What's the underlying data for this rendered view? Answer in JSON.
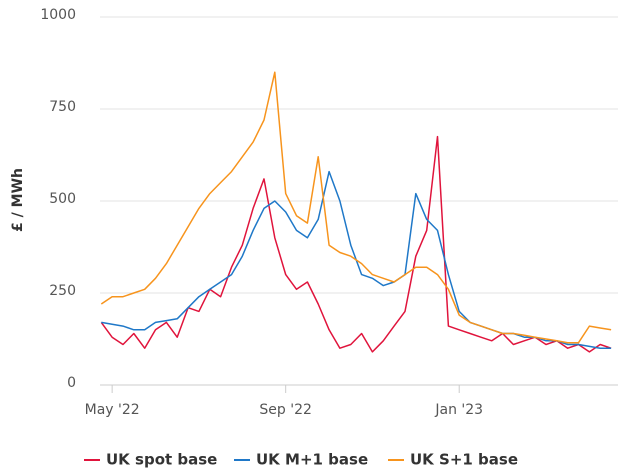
{
  "chart_data": {
    "type": "line",
    "y_label": "£ / MWh",
    "x": [
      4.75,
      5,
      5.25,
      5.5,
      5.75,
      6,
      6.25,
      6.5,
      6.75,
      7,
      7.25,
      7.5,
      7.75,
      8,
      8.25,
      8.5,
      8.75,
      9,
      9.25,
      9.5,
      9.75,
      10,
      10.25,
      10.5,
      10.75,
      11,
      11.25,
      11.5,
      11.75,
      12,
      12.25,
      12.5,
      12.75,
      13,
      13.25,
      13.5,
      13.75,
      14,
      14.25,
      14.5,
      14.75,
      15,
      15.25,
      15.5,
      15.75,
      16,
      16.25,
      16.5
    ],
    "series": [
      {
        "name": "UK spot base",
        "color": "#e0143c",
        "values": [
          170,
          130,
          110,
          140,
          100,
          150,
          170,
          130,
          210,
          200,
          260,
          240,
          320,
          380,
          480,
          560,
          400,
          300,
          260,
          280,
          220,
          150,
          100,
          110,
          140,
          90,
          120,
          160,
          200,
          350,
          420,
          675,
          160,
          150,
          140,
          130,
          120,
          140,
          110,
          120,
          130,
          110,
          120,
          100,
          110,
          90,
          110,
          100
        ]
      },
      {
        "name": "UK M+1 base",
        "color": "#1f78c8",
        "values": [
          170,
          165,
          160,
          150,
          150,
          170,
          175,
          180,
          210,
          240,
          260,
          280,
          300,
          350,
          420,
          480,
          500,
          470,
          420,
          400,
          450,
          580,
          500,
          380,
          300,
          290,
          270,
          280,
          300,
          520,
          450,
          420,
          300,
          200,
          170,
          160,
          150,
          140,
          140,
          130,
          130,
          120,
          120,
          110,
          110,
          105,
          100,
          100
        ]
      },
      {
        "name": "UK S+1 base",
        "color": "#f7941d",
        "values": [
          220,
          240,
          240,
          250,
          260,
          290,
          330,
          380,
          430,
          480,
          520,
          550,
          580,
          620,
          660,
          720,
          850,
          520,
          460,
          440,
          620,
          380,
          360,
          350,
          330,
          300,
          290,
          280,
          300,
          320,
          320,
          300,
          260,
          190,
          170,
          160,
          150,
          140,
          140,
          135,
          130,
          125,
          120,
          115,
          115,
          160,
          155,
          150
        ]
      }
    ],
    "xlim": [
      4.72,
      16.66
    ],
    "xticks": [
      {
        "value": 5,
        "label": "May '22"
      },
      {
        "value": 9,
        "label": "Sep '22"
      },
      {
        "value": 13,
        "label": "Jan '23"
      }
    ],
    "ylim": [
      0,
      1000
    ],
    "yticks": [
      0,
      250,
      500,
      750,
      1000
    ],
    "grid": true,
    "legend": "bottom"
  }
}
